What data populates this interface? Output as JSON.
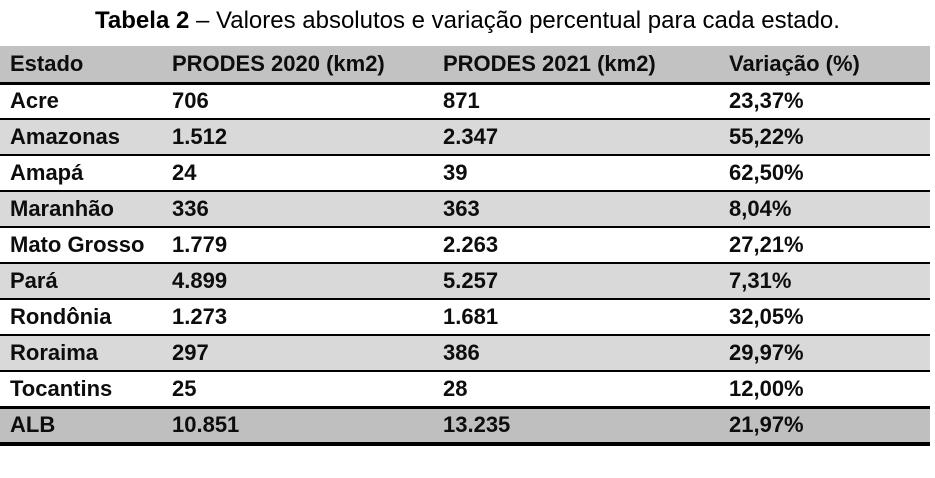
{
  "title": {
    "label": "Tabela 2",
    "text": " – Valores absolutos e variação percentual para cada estado."
  },
  "table": {
    "columns": [
      "Estado",
      "PRODES 2020 (km2)",
      "PRODES 2021 (km2)",
      "Variação (%)"
    ],
    "rows": [
      {
        "estado": "Acre",
        "prodes2020": "706",
        "prodes2021": "871",
        "variacao": "23,37%"
      },
      {
        "estado": "Amazonas",
        "prodes2020": "1.512",
        "prodes2021": "2.347",
        "variacao": "55,22%"
      },
      {
        "estado": "Amapá",
        "prodes2020": "24",
        "prodes2021": "39",
        "variacao": "62,50%"
      },
      {
        "estado": "Maranhão",
        "prodes2020": "336",
        "prodes2021": "363",
        "variacao": "8,04%"
      },
      {
        "estado": "Mato Grosso",
        "prodes2020": "1.779",
        "prodes2021": "2.263",
        "variacao": "27,21%"
      },
      {
        "estado": "Pará",
        "prodes2020": "4.899",
        "prodes2021": "5.257",
        "variacao": "7,31%"
      },
      {
        "estado": "Rondônia",
        "prodes2020": "1.273",
        "prodes2021": "1.681",
        "variacao": "32,05%"
      },
      {
        "estado": "Roraima",
        "prodes2020": "297",
        "prodes2021": "386",
        "variacao": "29,97%"
      },
      {
        "estado": "Tocantins",
        "prodes2020": "25",
        "prodes2021": "28",
        "variacao": "12,00%"
      },
      {
        "estado": "ALB",
        "prodes2020": "10.851",
        "prodes2021": "13.235",
        "variacao": "21,97%"
      }
    ],
    "colors": {
      "header_bg": "#c2c2c2",
      "stripe_bg": "#d9d9d9",
      "total_bg": "#bfbfbf",
      "border": "#000000",
      "text": "#0d0d0d"
    }
  }
}
